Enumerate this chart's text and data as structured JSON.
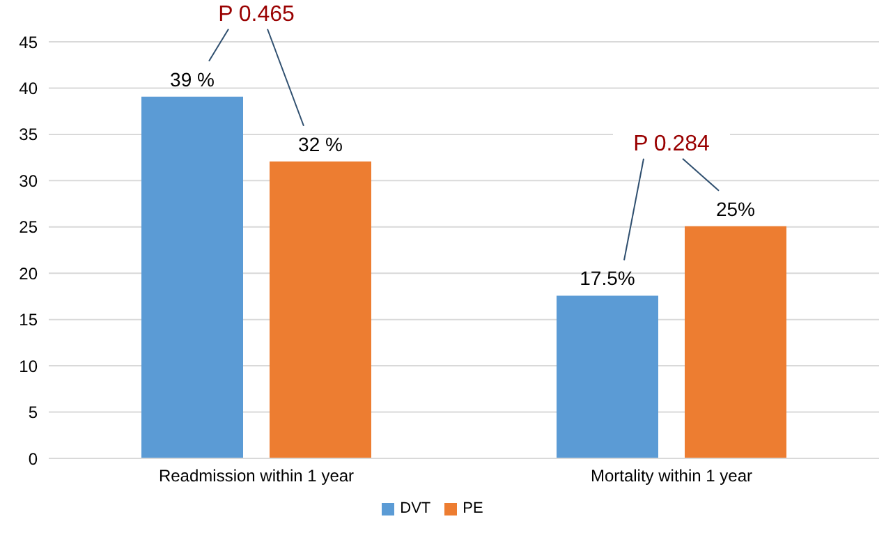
{
  "chart_data": {
    "type": "bar",
    "categories": [
      "Readmission within 1 year",
      "Mortality within 1 year"
    ],
    "series": [
      {
        "name": "DVT",
        "color": "#5b9bd5",
        "values": [
          39,
          17.5
        ],
        "value_labels": [
          "39 %",
          "17.5%"
        ]
      },
      {
        "name": "PE",
        "color": "#ed7d31",
        "values": [
          32,
          25
        ],
        "value_labels": [
          "32 %",
          "25%"
        ]
      }
    ],
    "ylim": [
      0,
      45
    ],
    "yticks": [
      0,
      5,
      10,
      15,
      20,
      25,
      30,
      35,
      40,
      45
    ],
    "grid": "y",
    "legend": "bottom",
    "annotations": [
      "P 0.465",
      "P 0.284"
    ]
  }
}
